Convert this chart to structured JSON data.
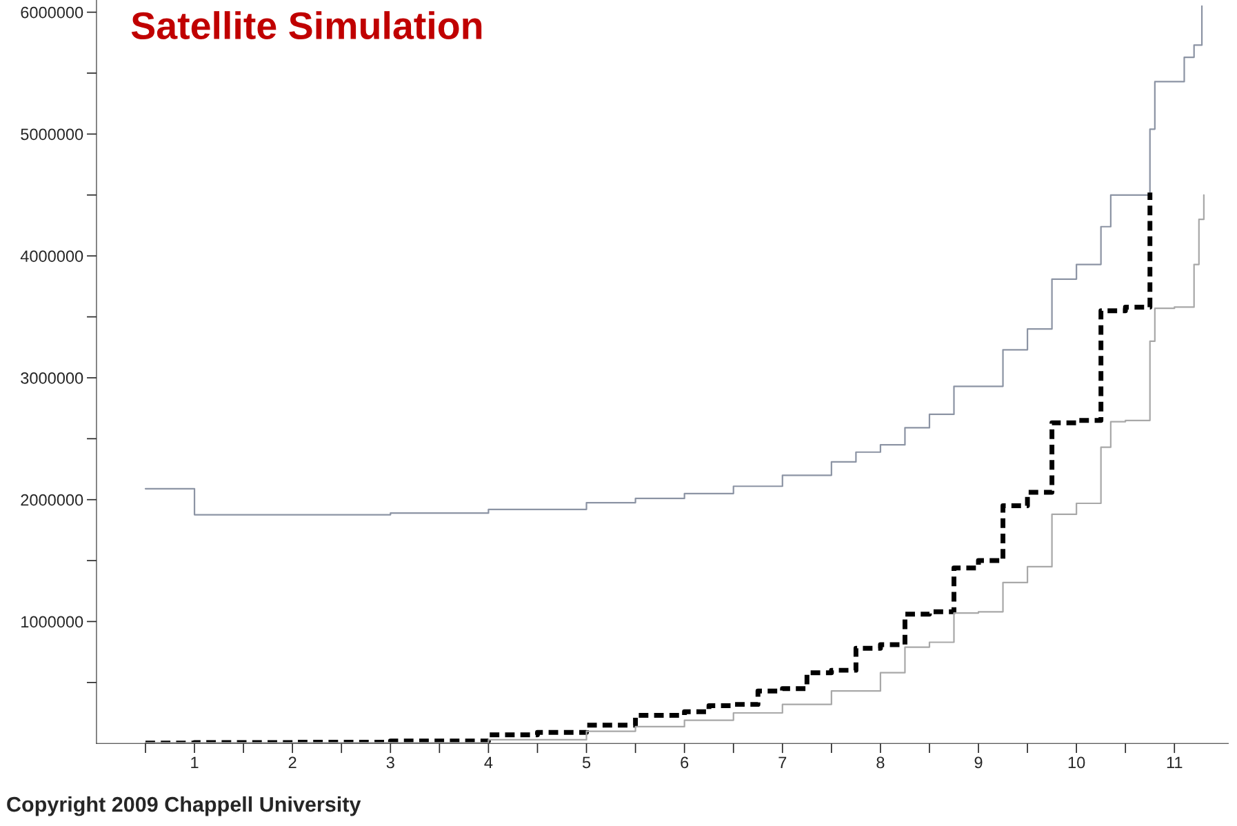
{
  "chart_data": {
    "type": "step",
    "title": "Satellite Simulation",
    "annotations": [
      "Copyright 2009 Chappell University"
    ],
    "xlim": [
      0,
      11.55
    ],
    "ylim": [
      0,
      6100000
    ],
    "xticks": [
      {
        "value": 0.5,
        "label": null
      },
      1,
      {
        "value": 1.5,
        "label": null
      },
      2,
      {
        "value": 2.5,
        "label": null
      },
      3,
      {
        "value": 3.5,
        "label": null
      },
      4,
      {
        "value": 4.5,
        "label": null
      },
      5,
      {
        "value": 5.5,
        "label": null
      },
      6,
      {
        "value": 6.5,
        "label": null
      },
      7,
      {
        "value": 7.5,
        "label": null
      },
      8,
      {
        "value": 8.5,
        "label": null
      },
      9,
      {
        "value": 9.5,
        "label": null
      },
      10,
      {
        "value": 10.5,
        "label": null
      },
      11
    ],
    "yticks": [
      {
        "value": 500000,
        "label": null
      },
      1000000,
      {
        "value": 1500000,
        "label": null
      },
      2000000,
      {
        "value": 2500000,
        "label": null
      },
      3000000,
      {
        "value": 3500000,
        "label": null
      },
      4000000,
      {
        "value": 4500000,
        "label": null
      },
      5000000,
      {
        "value": 5500000,
        "label": null
      },
      6000000
    ],
    "grid": false,
    "legend": false,
    "series": [
      {
        "color": "#8c94a4",
        "line_style": "solid",
        "x": [
          0.5,
          1,
          2,
          3,
          4,
          5,
          5.5,
          6,
          6.5,
          7,
          7.5,
          7.75,
          8,
          8.25,
          8.5,
          8.75,
          9,
          9.25,
          9.5,
          9.75,
          10,
          10.25,
          10.35,
          10.5,
          10.75,
          10.8,
          11,
          11.1,
          11.2,
          11.28
        ],
        "values": [
          2090000,
          1876000,
          1876000,
          1890000,
          1920000,
          1975000,
          2010000,
          2050000,
          2110000,
          2200000,
          2310000,
          2390000,
          2450000,
          2590000,
          2700000,
          2930000,
          2930000,
          3230000,
          3400000,
          3810000,
          3930000,
          4240000,
          4500000,
          4500000,
          5040000,
          5430000,
          5430000,
          5630000,
          5730000,
          6050000
        ]
      },
      {
        "color": "#000000",
        "line_style": "dashed",
        "x": [
          0.5,
          1,
          2,
          3,
          4,
          4.5,
          5,
          5.5,
          6,
          6.25,
          6.5,
          6.75,
          7,
          7.25,
          7.5,
          7.75,
          8,
          8.25,
          8.5,
          8.75,
          9,
          9.25,
          9.5,
          9.75,
          10,
          10.25,
          10.5,
          10.75
        ],
        "values": [
          3000,
          7000,
          10000,
          20000,
          70000,
          90000,
          150000,
          230000,
          260000,
          310000,
          320000,
          430000,
          450000,
          580000,
          600000,
          780000,
          810000,
          1060000,
          1080000,
          1440000,
          1500000,
          1950000,
          2060000,
          2630000,
          2650000,
          3550000,
          3580000,
          4520000
        ]
      },
      {
        "color": "#a8a8a8",
        "line_style": "solid",
        "x": [
          0.5,
          4,
          5,
          5.5,
          6,
          6.5,
          7,
          7.5,
          8,
          8.25,
          8.5,
          8.75,
          9,
          9.25,
          9.5,
          9.75,
          10,
          10.25,
          10.35,
          10.5,
          10.75,
          10.8,
          11,
          11.2,
          11.25,
          11.3
        ],
        "values": [
          5000,
          30000,
          100000,
          137000,
          190000,
          250000,
          320000,
          430000,
          580000,
          790000,
          830000,
          1070000,
          1080000,
          1320000,
          1450000,
          1880000,
          1970000,
          2430000,
          2640000,
          2650000,
          3300000,
          3570000,
          3580000,
          3930000,
          4300000,
          4500000
        ]
      }
    ]
  }
}
